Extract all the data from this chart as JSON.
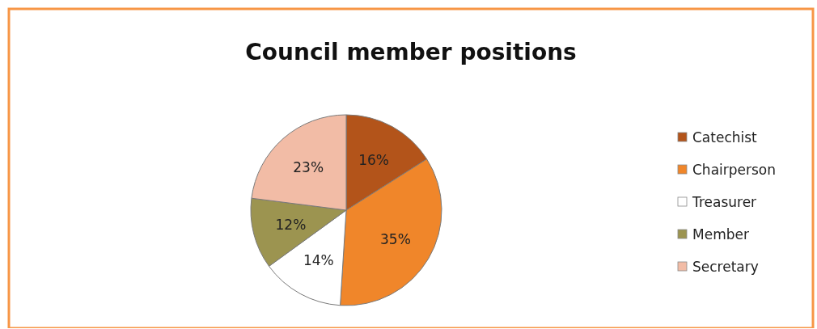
{
  "chart_data": {
    "type": "pie",
    "title": "Council member positions",
    "categories": [
      "Catechist",
      "Chairperson",
      "Treasurer",
      "Member",
      "Secretary"
    ],
    "values": [
      16,
      35,
      14,
      12,
      23
    ],
    "colors": [
      "#b3541a",
      "#f0862a",
      "#ffffff",
      "#9c9450",
      "#f2bca6"
    ],
    "value_labels": [
      "16%",
      "35%",
      "14%",
      "12%",
      "23%"
    ],
    "legend": "right"
  }
}
